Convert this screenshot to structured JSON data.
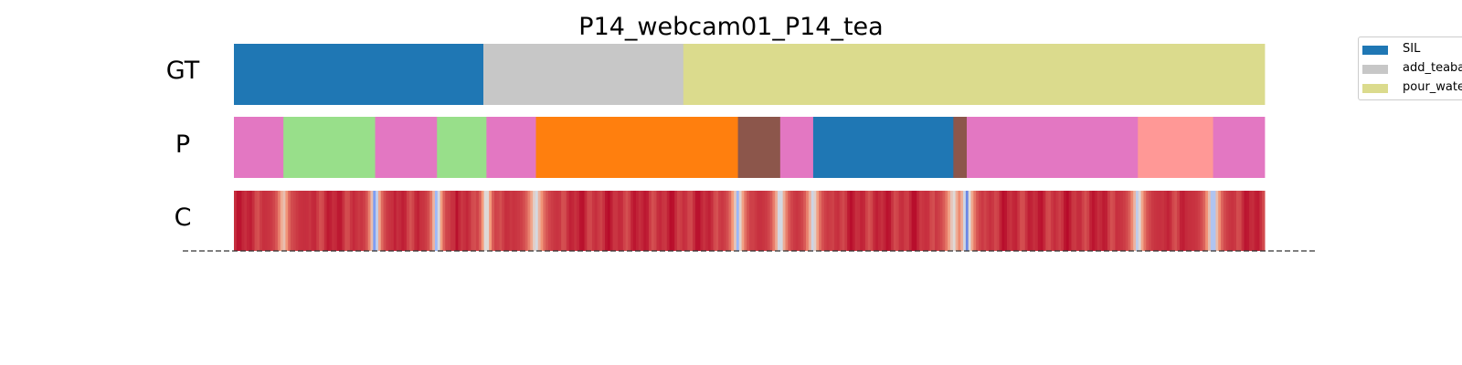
{
  "chart_data": {
    "type": "segmentation",
    "title": "P14_webcam01_P14_tea",
    "x_range": [
      0,
      1000
    ],
    "rows": [
      {
        "label": "GT",
        "segments": [
          {
            "start": 0,
            "end": 242,
            "class": "SIL",
            "color": "#1f77b4"
          },
          {
            "start": 242,
            "end": 436,
            "class": "add_teabag",
            "color": "#c7c7c7"
          },
          {
            "start": 436,
            "end": 1000,
            "class": "pour_water",
            "color": "#dbdb8d"
          }
        ]
      },
      {
        "label": "P",
        "segments": [
          {
            "start": 0,
            "end": 48,
            "color": "#e377c2"
          },
          {
            "start": 48,
            "end": 137,
            "color": "#98df8a"
          },
          {
            "start": 137,
            "end": 197,
            "color": "#e377c2"
          },
          {
            "start": 197,
            "end": 245,
            "color": "#98df8a"
          },
          {
            "start": 245,
            "end": 293,
            "color": "#e377c2"
          },
          {
            "start": 293,
            "end": 489,
            "color": "#ff7f0e"
          },
          {
            "start": 489,
            "end": 530,
            "color": "#8c564b"
          },
          {
            "start": 530,
            "end": 562,
            "color": "#e377c2"
          },
          {
            "start": 562,
            "end": 698,
            "color": "#1f77b4"
          },
          {
            "start": 698,
            "end": 711,
            "color": "#8c564b"
          },
          {
            "start": 711,
            "end": 877,
            "color": "#e377c2"
          },
          {
            "start": 877,
            "end": 950,
            "color": "#ff9896"
          },
          {
            "start": 950,
            "end": 1000,
            "color": "#e377c2"
          }
        ]
      },
      {
        "label": "C",
        "type": "heatmap",
        "colormap": "coolwarm",
        "base_value": 0.93,
        "dips": [
          {
            "x": 48,
            "min": 0.55,
            "width": 4
          },
          {
            "x": 137,
            "min": 0.0,
            "width": 3
          },
          {
            "x": 197,
            "min": 0.12,
            "width": 3
          },
          {
            "x": 245,
            "min": 0.3,
            "width": 3
          },
          {
            "x": 293,
            "min": 0.4,
            "width": 5
          },
          {
            "x": 489,
            "min": 0.25,
            "width": 4
          },
          {
            "x": 530,
            "min": 0.3,
            "width": 4
          },
          {
            "x": 562,
            "min": 0.35,
            "width": 4
          },
          {
            "x": 698,
            "min": 0.45,
            "width": 5
          },
          {
            "x": 711,
            "min": 0.1,
            "width": 4
          },
          {
            "x": 877,
            "min": 0.3,
            "width": 4
          },
          {
            "x": 950,
            "min": 0.15,
            "width": 4
          }
        ]
      }
    ],
    "legend": {
      "position": "top-right",
      "entries": [
        {
          "label": "SIL",
          "color": "#1f77b4"
        },
        {
          "label": "add_teabag",
          "color": "#c7c7c7"
        },
        {
          "label": "pour_water",
          "color": "#dbdb8d"
        }
      ]
    }
  }
}
